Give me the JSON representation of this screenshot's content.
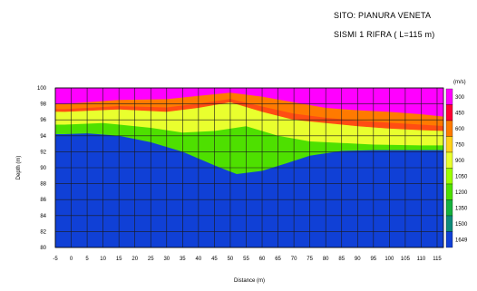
{
  "header": {
    "site": "SITO: PIANURA VENETA",
    "survey": "SISMI 1 RIFRA ( L=115 m)"
  },
  "chart_data": {
    "type": "heatmap",
    "title": "",
    "xlabel": "Distance (m)",
    "ylabel": "Depth (m)",
    "xlim": [
      -5,
      117
    ],
    "ylim": [
      80,
      100
    ],
    "x_ticks": [
      "-5",
      "0",
      "5",
      "10",
      "15",
      "20",
      "25",
      "30",
      "35",
      "40",
      "45",
      "50",
      "55",
      "60",
      "65",
      "70",
      "75",
      "80",
      "85",
      "90",
      "95",
      "100",
      "105",
      "110",
      "115"
    ],
    "y_ticks": [
      "80",
      "82",
      "84",
      "86",
      "88",
      "90",
      "92",
      "94",
      "96",
      "98",
      "100"
    ],
    "grid": true,
    "colorbar": {
      "unit": "(m/s)",
      "levels": [
        "300",
        "450",
        "600",
        "750",
        "900",
        "1050",
        "1200",
        "1350",
        "1500",
        "1649"
      ],
      "colors": [
        "#ff00ff",
        "#ff0033",
        "#ff7a00",
        "#ffd21a",
        "#e9ff2e",
        "#9dff00",
        "#4ee000",
        "#16b13e",
        "#0e8a7a",
        "#1040d6"
      ]
    },
    "velocity_layers": [
      {
        "velocity": 300,
        "color": "#ff00ff",
        "depth_at_x": [
          [
            -2,
            99.2
          ],
          [
            20,
            99.4
          ],
          [
            30,
            99.3
          ],
          [
            40,
            99.6
          ],
          [
            50,
            99.8
          ],
          [
            60,
            99.9
          ],
          [
            70,
            99.5
          ],
          [
            85,
            99.0
          ],
          [
            95,
            98.6
          ],
          [
            105,
            98.3
          ],
          [
            115,
            97.9
          ],
          [
            117,
            97.8
          ]
        ]
      },
      {
        "velocity": 600,
        "color": "#ff7a00",
        "depth_at_x": [
          [
            -2,
            98.0
          ],
          [
            15,
            98.5
          ],
          [
            30,
            98.6
          ],
          [
            40,
            99.0
          ],
          [
            50,
            99.4
          ],
          [
            60,
            98.9
          ],
          [
            70,
            98.2
          ],
          [
            80,
            97.5
          ],
          [
            90,
            97.2
          ],
          [
            100,
            97.0
          ],
          [
            110,
            96.7
          ],
          [
            117,
            96.4
          ]
        ]
      },
      {
        "velocity": 900,
        "color": "#e9ff2e",
        "depth_at_x": [
          [
            -2,
            97.0
          ],
          [
            15,
            97.3
          ],
          [
            30,
            97.0
          ],
          [
            40,
            97.5
          ],
          [
            50,
            98.2
          ],
          [
            60,
            97.0
          ],
          [
            70,
            96.0
          ],
          [
            80,
            95.6
          ],
          [
            90,
            95.2
          ],
          [
            100,
            94.9
          ],
          [
            110,
            94.7
          ],
          [
            117,
            94.6
          ]
        ]
      },
      {
        "velocity": 1200,
        "color": "#4ee000",
        "depth_at_x": [
          [
            -2,
            95.4
          ],
          [
            10,
            95.6
          ],
          [
            25,
            95.0
          ],
          [
            35,
            94.4
          ],
          [
            45,
            94.6
          ],
          [
            55,
            95.2
          ],
          [
            65,
            94.0
          ],
          [
            75,
            93.3
          ],
          [
            85,
            93.1
          ],
          [
            95,
            92.9
          ],
          [
            110,
            92.8
          ],
          [
            117,
            92.8
          ]
        ]
      },
      {
        "velocity": 1649,
        "color": "#1040d6",
        "depth_at_x": [
          [
            -2,
            94.2
          ],
          [
            5,
            94.3
          ],
          [
            15,
            94.0
          ],
          [
            25,
            93.2
          ],
          [
            35,
            92.0
          ],
          [
            45,
            90.3
          ],
          [
            52,
            89.2
          ],
          [
            60,
            89.6
          ],
          [
            68,
            90.6
          ],
          [
            75,
            91.5
          ],
          [
            85,
            92.1
          ],
          [
            95,
            92.2
          ],
          [
            110,
            92.2
          ],
          [
            117,
            92.2
          ]
        ]
      }
    ]
  }
}
